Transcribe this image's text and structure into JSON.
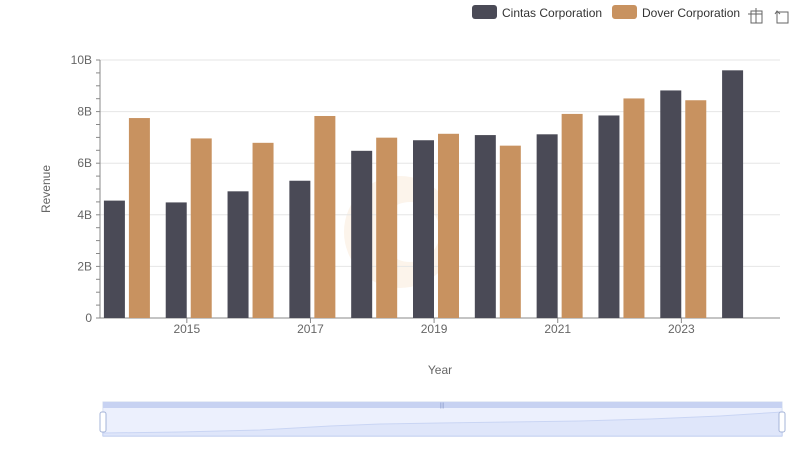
{
  "chart_data": {
    "type": "bar",
    "xlabel": "Year",
    "ylabel": "Revenue",
    "ylim": [
      0,
      10000000000
    ],
    "y_ticks": [
      {
        "value": 0,
        "label": "0"
      },
      {
        "value": 2000000000,
        "label": "2B"
      },
      {
        "value": 4000000000,
        "label": "4B"
      },
      {
        "value": 6000000000,
        "label": "6B"
      },
      {
        "value": 8000000000,
        "label": "8B"
      },
      {
        "value": 10000000000,
        "label": "10B"
      }
    ],
    "x_tick_labels": [
      "2015",
      "2017",
      "2019",
      "2021",
      "2023"
    ],
    "categories": [
      "2014",
      "2015",
      "2016",
      "2017",
      "2018",
      "2019",
      "2020",
      "2021",
      "2022",
      "2023",
      "2024"
    ],
    "grid": true,
    "legend_position": "top-right",
    "series": [
      {
        "name": "Cintas Corporation",
        "color": "#4a4a56",
        "values": [
          4550000000,
          4480000000,
          4910000000,
          5320000000,
          6480000000,
          6890000000,
          7090000000,
          7120000000,
          7850000000,
          8820000000,
          9600000000
        ]
      },
      {
        "name": "Dover Corporation",
        "color": "#c89260",
        "values": [
          7750000000,
          6960000000,
          6790000000,
          7830000000,
          6990000000,
          7140000000,
          6680000000,
          7910000000,
          8510000000,
          8440000000,
          null
        ]
      }
    ]
  },
  "toolbox": {
    "zoom_icon": "zoom-select-icon",
    "restore_icon": "zoom-restore-icon"
  },
  "datazoom": {
    "start_percent": 0,
    "end_percent": 100
  }
}
